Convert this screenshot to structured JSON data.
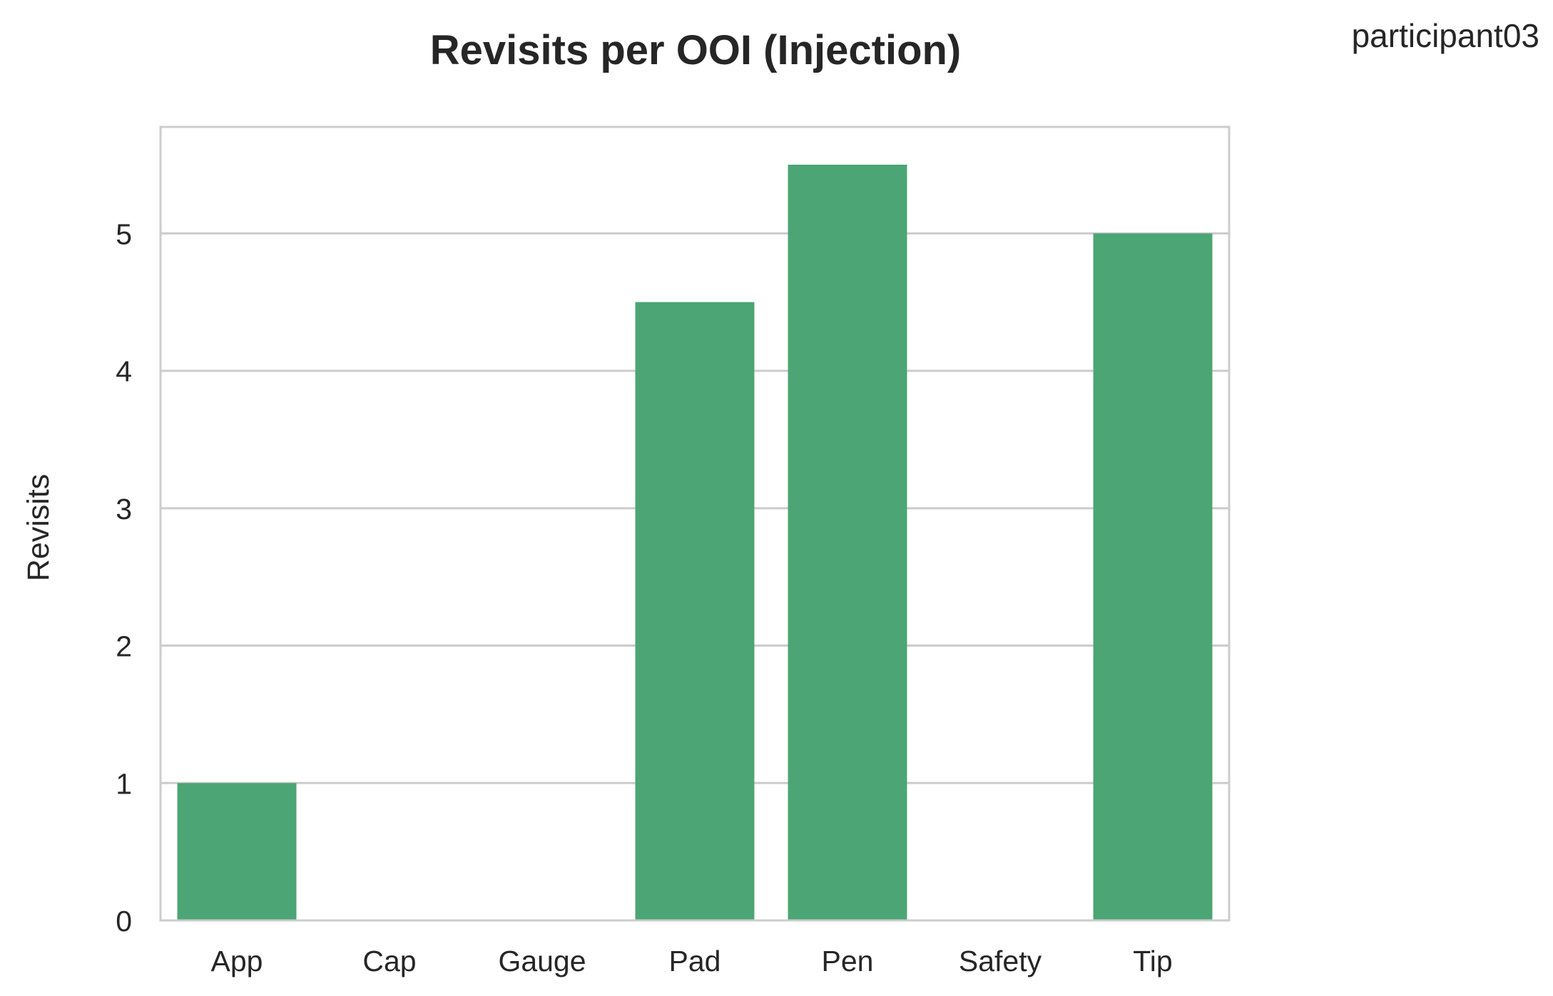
{
  "chart_data": {
    "type": "bar",
    "title": "Revisits per OOI (Injection)",
    "corner_label": "participant03",
    "xlabel": "",
    "ylabel": "Revisits",
    "categories": [
      "App",
      "Cap",
      "Gauge",
      "Pad",
      "Pen",
      "Safety",
      "Tip"
    ],
    "values": [
      1,
      0,
      0,
      4.5,
      5.5,
      0,
      5
    ],
    "yticks": [
      0,
      1,
      2,
      3,
      4,
      5
    ],
    "ylim": [
      0,
      5.775
    ],
    "grid": true,
    "bar_color": "#4ca574",
    "grid_color": "#cccccc",
    "spine_color": "#cccccc"
  }
}
